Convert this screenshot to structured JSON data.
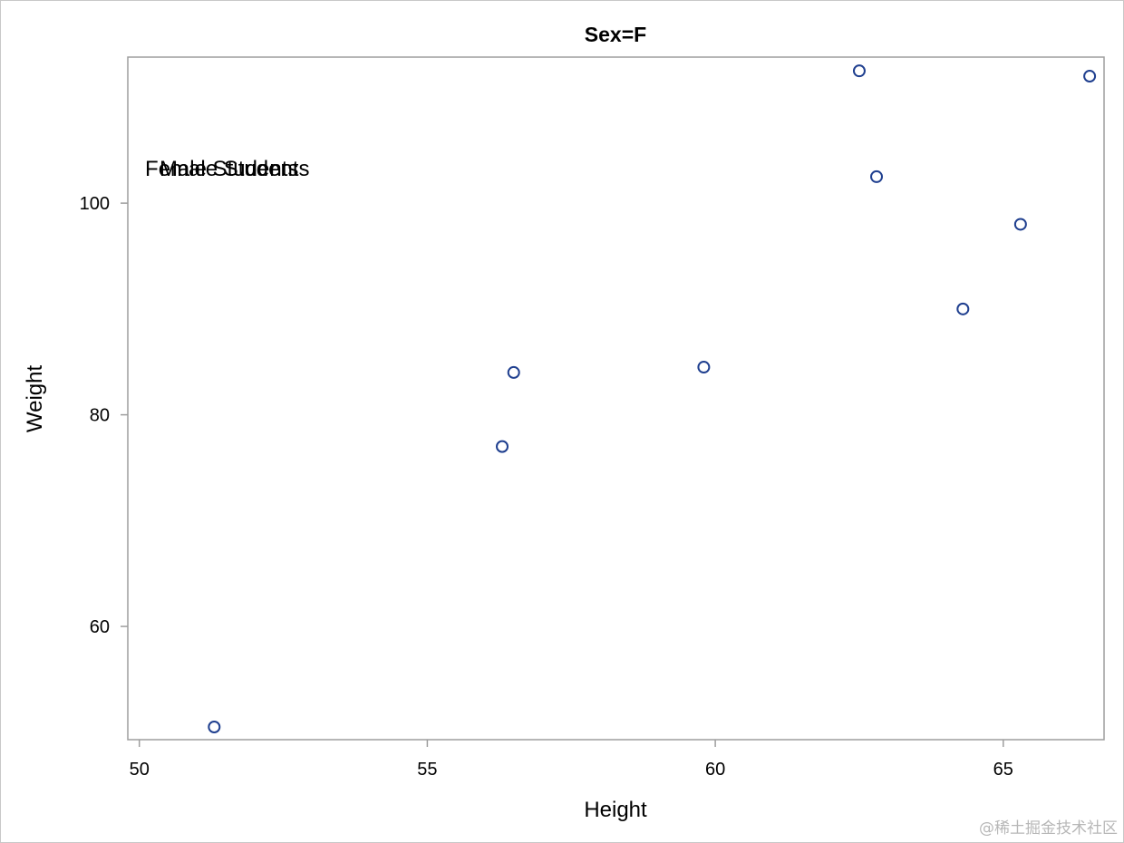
{
  "chart_data": {
    "type": "scatter",
    "title": "Sex=F",
    "xlabel": "Height",
    "ylabel": "Weight",
    "xlim": [
      49.8,
      66.75
    ],
    "ylim": [
      49.3,
      113.8
    ],
    "xticks": [
      50,
      55,
      60,
      65
    ],
    "yticks": [
      60,
      80,
      100
    ],
    "grid": false,
    "marker_color": "#1f3f8f",
    "series": [
      {
        "x": [
          51.3,
          56.3,
          56.5,
          59.8,
          62.5,
          62.8,
          64.3,
          65.3,
          66.5
        ],
        "y": [
          50.5,
          77.0,
          84.0,
          84.5,
          112.5,
          102.5,
          90.0,
          98.0,
          112.0
        ]
      }
    ],
    "annotations": [
      {
        "text": "Female Students",
        "x": 50.1,
        "y": 102.6
      },
      {
        "text": "Male Students",
        "x": 50.35,
        "y": 102.6
      }
    ]
  },
  "watermark": "@稀土掘金技术社区"
}
